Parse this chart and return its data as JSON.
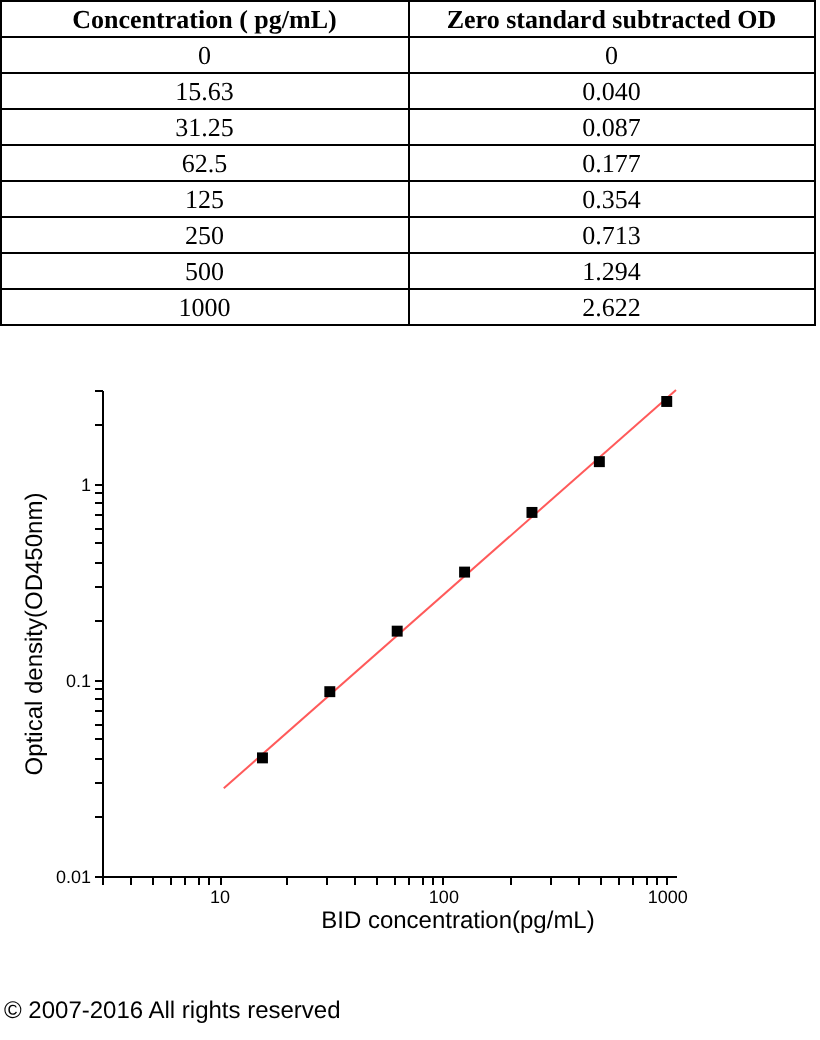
{
  "chart_data": [
    {
      "type": "other",
      "annotations": [
        "Concentration ( pg/mL)",
        "Zero standard subtracted OD",
        "0",
        "0",
        "15.63",
        "0.040",
        "31.25",
        "0.087",
        "62.5",
        "0.177",
        "125",
        "0.354",
        "250",
        "0.713",
        "500",
        "1.294",
        "1000",
        "2.622"
      ]
    },
    {
      "type": "scatter",
      "xlabel": "BID concentration(pg/mL)",
      "ylabel": "Optical density(OD450nm)",
      "log": "xy",
      "xlim": [
        3,
        1100
      ],
      "ylim": [
        0.01,
        3
      ],
      "xticks": [
        {
          "value": 3,
          "label": null
        },
        {
          "value": 4,
          "label": null
        },
        {
          "value": 5,
          "label": null
        },
        {
          "value": 6,
          "label": null
        },
        {
          "value": 7,
          "label": null
        },
        {
          "value": 8,
          "label": null
        },
        {
          "value": 9,
          "label": null
        },
        10,
        {
          "value": 20,
          "label": null
        },
        {
          "value": 30,
          "label": null
        },
        {
          "value": 40,
          "label": null
        },
        {
          "value": 50,
          "label": null
        },
        {
          "value": 60,
          "label": null
        },
        {
          "value": 70,
          "label": null
        },
        {
          "value": 80,
          "label": null
        },
        {
          "value": 90,
          "label": null
        },
        100,
        {
          "value": 200,
          "label": null
        },
        {
          "value": 300,
          "label": null
        },
        {
          "value": 400,
          "label": null
        },
        {
          "value": 500,
          "label": null
        },
        {
          "value": 600,
          "label": null
        },
        {
          "value": 700,
          "label": null
        },
        {
          "value": 800,
          "label": null
        },
        {
          "value": 900,
          "label": null
        },
        1000
      ],
      "yticks": [
        0.01,
        {
          "value": 0.02,
          "label": null
        },
        {
          "value": 0.03,
          "label": null
        },
        {
          "value": 0.04,
          "label": null
        },
        {
          "value": 0.05,
          "label": null
        },
        {
          "value": 0.06,
          "label": null
        },
        {
          "value": 0.07,
          "label": null
        },
        {
          "value": 0.08,
          "label": null
        },
        {
          "value": 0.09,
          "label": null
        },
        0.1,
        {
          "value": 0.2,
          "label": null
        },
        {
          "value": 0.3,
          "label": null
        },
        {
          "value": 0.4,
          "label": null
        },
        {
          "value": 0.5,
          "label": null
        },
        {
          "value": 0.6,
          "label": null
        },
        {
          "value": 0.7,
          "label": null
        },
        {
          "value": 0.8,
          "label": null
        },
        {
          "value": 0.9,
          "label": null
        },
        1,
        {
          "value": 2,
          "label": null
        },
        {
          "value": 3,
          "label": null
        }
      ],
      "series": [
        {
          "type": "line",
          "marker": "none",
          "color": "#ff5a5a",
          "x": [
            10.5,
            1100
          ],
          "values": [
            0.028,
            3
          ]
        },
        {
          "type": "scatter",
          "marker": "square",
          "color": "#000000",
          "x": [
            15.63,
            31.25,
            62.5,
            125,
            250,
            500,
            1000
          ],
          "values": [
            0.04,
            0.087,
            0.177,
            0.354,
            0.713,
            1.294,
            2.622
          ]
        }
      ],
      "annotations": [
        "© 2007-2016 All rights reserved"
      ]
    }
  ]
}
